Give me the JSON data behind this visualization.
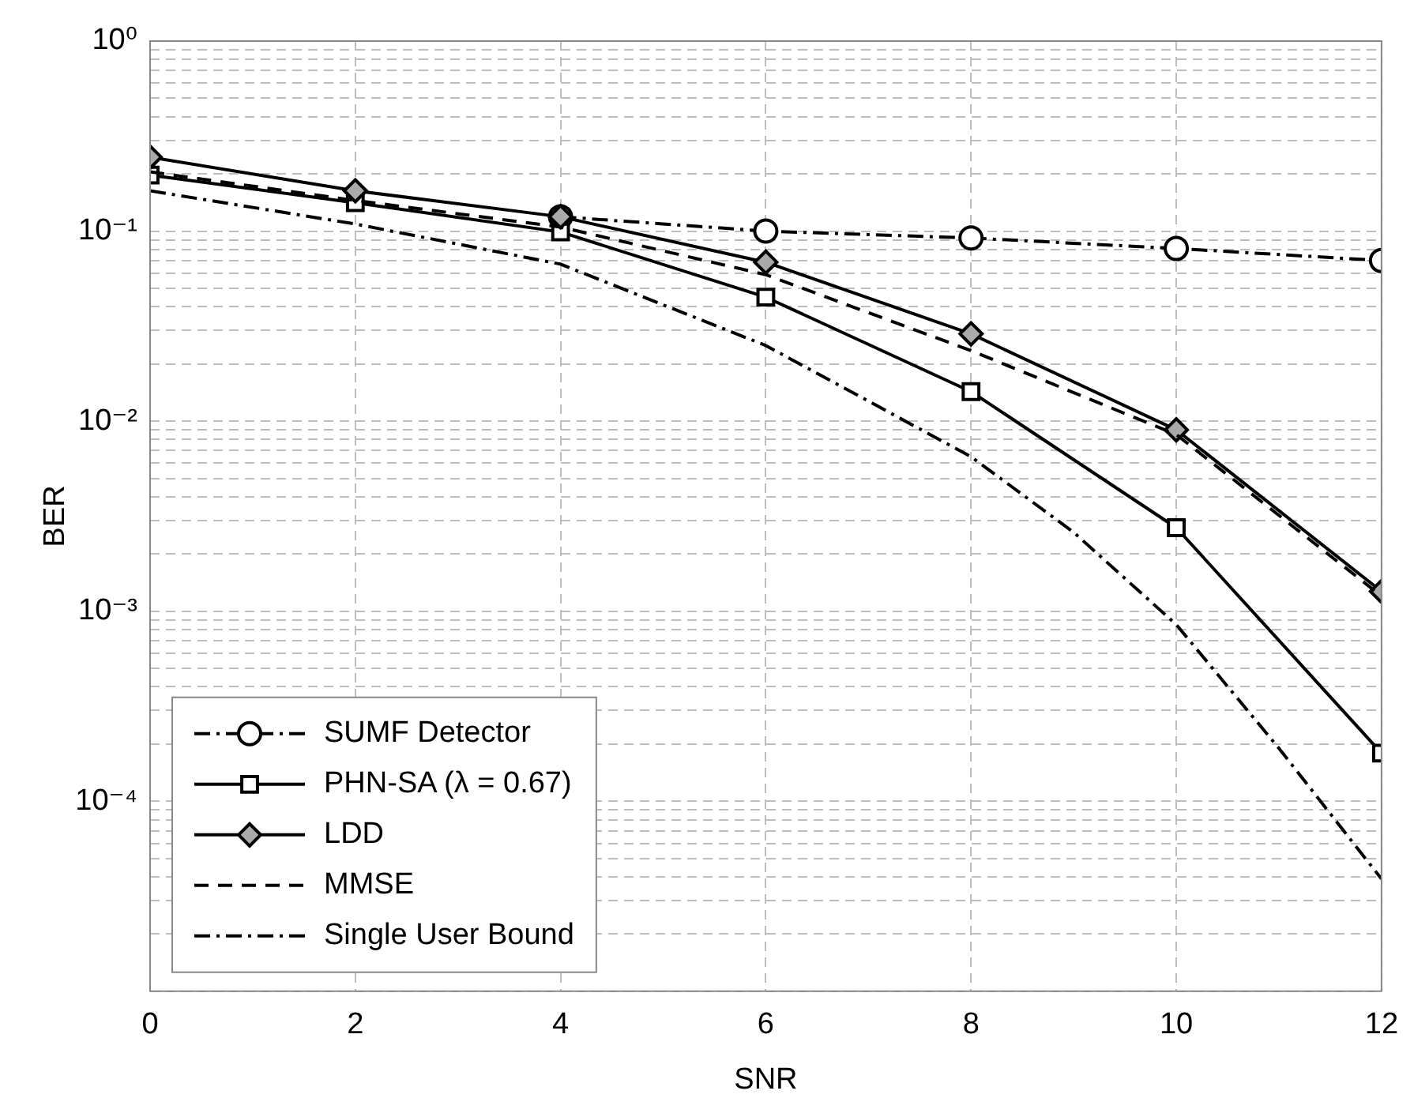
{
  "chart_data": {
    "type": "line",
    "xlabel": "SNR",
    "ylabel": "BER",
    "log": "y",
    "grid": true,
    "legend": "bottom left",
    "x": [
      0,
      2,
      4,
      6,
      8,
      10,
      12
    ],
    "xlim": [
      0,
      12
    ],
    "xticks": [
      0,
      2,
      4,
      6,
      8,
      10,
      12
    ],
    "ylim": [
      1e-05,
      1
    ],
    "yticks": [
      {
        "value": 1e-05,
        "label": null
      },
      {
        "value": 2e-05,
        "label": null
      },
      {
        "value": 3e-05,
        "label": null
      },
      {
        "value": 4e-05,
        "label": null
      },
      {
        "value": 5e-05,
        "label": null
      },
      {
        "value": 6e-05,
        "label": null
      },
      {
        "value": 7e-05,
        "label": null
      },
      {
        "value": 8e-05,
        "label": null
      },
      {
        "value": 9e-05,
        "label": null
      },
      {
        "value": 0.0001,
        "label": "10⁻⁴"
      },
      {
        "value": 0.0002,
        "label": null
      },
      {
        "value": 0.0003,
        "label": null
      },
      {
        "value": 0.0004,
        "label": null
      },
      {
        "value": 0.0005,
        "label": null
      },
      {
        "value": 0.0006,
        "label": null
      },
      {
        "value": 0.0007,
        "label": null
      },
      {
        "value": 0.0008,
        "label": null
      },
      {
        "value": 0.0009,
        "label": null
      },
      {
        "value": 0.001,
        "label": "10⁻³"
      },
      {
        "value": 0.002,
        "label": null
      },
      {
        "value": 0.003,
        "label": null
      },
      {
        "value": 0.004,
        "label": null
      },
      {
        "value": 0.005,
        "label": null
      },
      {
        "value": 0.006,
        "label": null
      },
      {
        "value": 0.007,
        "label": null
      },
      {
        "value": 0.008,
        "label": null
      },
      {
        "value": 0.009,
        "label": null
      },
      {
        "value": 0.01,
        "label": "10⁻²"
      },
      {
        "value": 0.02,
        "label": null
      },
      {
        "value": 0.03,
        "label": null
      },
      {
        "value": 0.04,
        "label": null
      },
      {
        "value": 0.05,
        "label": null
      },
      {
        "value": 0.06,
        "label": null
      },
      {
        "value": 0.07,
        "label": null
      },
      {
        "value": 0.08,
        "label": null
      },
      {
        "value": 0.09,
        "label": null
      },
      {
        "value": 0.1,
        "label": "10⁻¹"
      },
      {
        "value": 0.2,
        "label": null
      },
      {
        "value": 0.3,
        "label": null
      },
      {
        "value": 0.4,
        "label": null
      },
      {
        "value": 0.5,
        "label": null
      },
      {
        "value": 0.6,
        "label": null
      },
      {
        "value": 0.7,
        "label": null
      },
      {
        "value": 0.8,
        "label": null
      },
      {
        "value": 0.9,
        "label": null
      },
      {
        "value": 1,
        "label": "10⁰"
      }
    ],
    "series": [
      {
        "name": "SUMF Detector",
        "color": "#000000",
        "marker": "circle",
        "line_style": "dashdot",
        "values": [
          null,
          null,
          0.119,
          0.1,
          0.092,
          0.081,
          0.07
        ]
      },
      {
        "name": "PHN-SA (λ = 0.67)",
        "color": "#000000",
        "marker": "square",
        "line_style": "solid",
        "values": [
          0.197,
          0.141,
          0.099,
          0.0449,
          0.0143,
          0.00275,
          0.000179
        ]
      },
      {
        "name": "LDD",
        "color": "#000000",
        "marker": "diamond",
        "line_style": "solid",
        "values": [
          0.245,
          0.163,
          0.119,
          0.0686,
          0.0288,
          0.009,
          0.00127
        ]
      },
      {
        "name": "MMSE",
        "color": "#000000",
        "marker": "none",
        "line_style": "dashed",
        "values": [
          0.205,
          0.145,
          0.105,
          0.059,
          0.0235,
          0.0085,
          0.0012
        ]
      },
      {
        "name": "Single User Bound",
        "color": "#000000",
        "marker": "none",
        "line_style": "dashdot",
        "x": [
          0,
          2,
          4,
          6,
          8,
          9,
          10,
          11,
          12
        ],
        "values": [
          0.163,
          0.109,
          0.067,
          0.025,
          0.0065,
          0.0026,
          0.00085,
          0.00019,
          3.9e-05
        ]
      }
    ]
  }
}
